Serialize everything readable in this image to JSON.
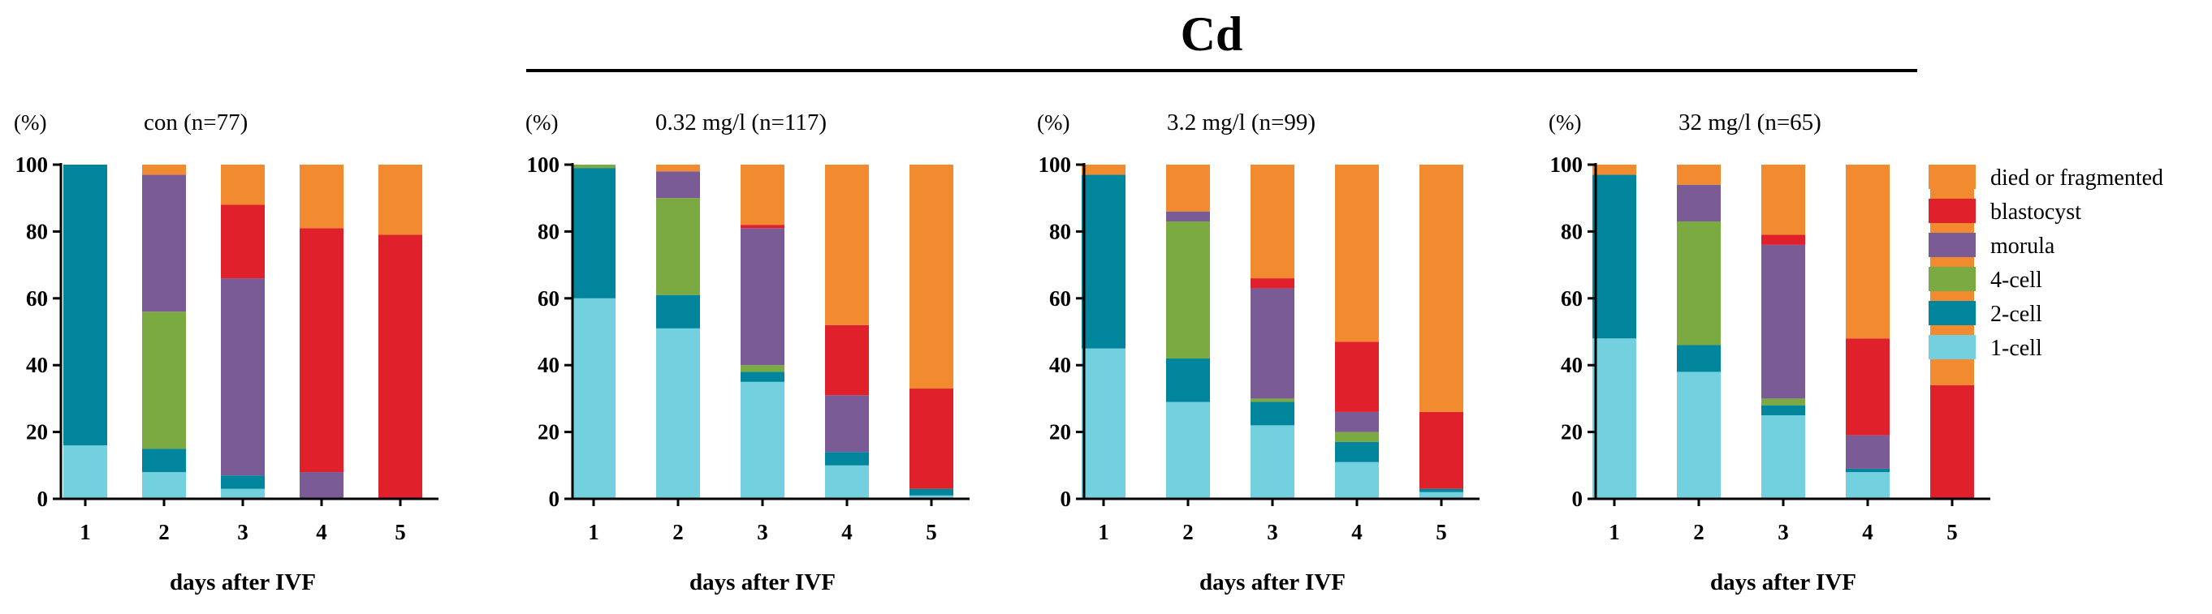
{
  "figure_title": "Cd",
  "colors": {
    "died or fragmented": "#F28A30",
    "blastocyst": "#E0202A",
    "morula": "#7B5B95",
    "4-cell": "#7BAA42",
    "2-cell": "#00859C",
    "1-cell": "#72D0DF",
    "axis": "#000000"
  },
  "legend": {
    "items": [
      "died or fragmented",
      "blastocyst",
      "morula",
      "4-cell",
      "2-cell",
      "1-cell"
    ]
  },
  "chart_data": [
    {
      "type": "bar",
      "stacked": true,
      "title": "con (n=77)",
      "ylabel": "(%)",
      "xlabel": "days after IVF",
      "categories": [
        "1",
        "2",
        "3",
        "4",
        "5"
      ],
      "ylim": [
        0,
        100
      ],
      "yticks": [
        "0",
        "20",
        "40",
        "60",
        "80",
        "100"
      ],
      "series": [
        {
          "name": "1-cell",
          "values": [
            16,
            8,
            3,
            0,
            0
          ]
        },
        {
          "name": "2-cell",
          "values": [
            84,
            7,
            4,
            0,
            0
          ]
        },
        {
          "name": "4-cell",
          "values": [
            0,
            41,
            0,
            0,
            0
          ]
        },
        {
          "name": "morula",
          "values": [
            0,
            41,
            59,
            8,
            0
          ]
        },
        {
          "name": "blastocyst",
          "values": [
            0,
            0,
            22,
            73,
            79
          ]
        },
        {
          "name": "died or fragmented",
          "values": [
            0,
            3,
            12,
            19,
            21
          ]
        }
      ]
    },
    {
      "type": "bar",
      "stacked": true,
      "title": "0.32 mg/l (n=117)",
      "ylabel": "(%)",
      "xlabel": "days after IVF",
      "categories": [
        "1",
        "2",
        "3",
        "4",
        "5"
      ],
      "ylim": [
        0,
        100
      ],
      "yticks": [
        "0",
        "20",
        "40",
        "60",
        "80",
        "100"
      ],
      "series": [
        {
          "name": "1-cell",
          "values": [
            60,
            51,
            35,
            10,
            1
          ]
        },
        {
          "name": "2-cell",
          "values": [
            39,
            10,
            3,
            4,
            2
          ]
        },
        {
          "name": "4-cell",
          "values": [
            1,
            29,
            2,
            0,
            0
          ]
        },
        {
          "name": "morula",
          "values": [
            0,
            8,
            41,
            17,
            0
          ]
        },
        {
          "name": "blastocyst",
          "values": [
            0,
            0,
            1,
            21,
            30
          ]
        },
        {
          "name": "died or fragmented",
          "values": [
            0,
            2,
            18,
            48,
            67
          ]
        }
      ]
    },
    {
      "type": "bar",
      "stacked": true,
      "title": "3.2 mg/l (n=99)",
      "ylabel": "(%)",
      "xlabel": "days after IVF",
      "categories": [
        "1",
        "2",
        "3",
        "4",
        "5"
      ],
      "ylim": [
        0,
        100
      ],
      "yticks": [
        "0",
        "20",
        "40",
        "60",
        "80",
        "100"
      ],
      "series": [
        {
          "name": "1-cell",
          "values": [
            45,
            29,
            22,
            11,
            2
          ]
        },
        {
          "name": "2-cell",
          "values": [
            52,
            13,
            7,
            6,
            1
          ]
        },
        {
          "name": "4-cell",
          "values": [
            0,
            41,
            1,
            3,
            0
          ]
        },
        {
          "name": "morula",
          "values": [
            0,
            3,
            33,
            6,
            0
          ]
        },
        {
          "name": "blastocyst",
          "values": [
            0,
            0,
            3,
            21,
            23
          ]
        },
        {
          "name": "died or fragmented",
          "values": [
            3,
            14,
            34,
            53,
            74
          ]
        }
      ]
    },
    {
      "type": "bar",
      "stacked": true,
      "title": "32 mg/l (n=65)",
      "ylabel": "(%)",
      "xlabel": "days after IVF",
      "categories": [
        "1",
        "2",
        "3",
        "4",
        "5"
      ],
      "ylim": [
        0,
        100
      ],
      "yticks": [
        "0",
        "20",
        "40",
        "60",
        "80",
        "100"
      ],
      "series": [
        {
          "name": "1-cell",
          "values": [
            48,
            38,
            25,
            8,
            0
          ]
        },
        {
          "name": "2-cell",
          "values": [
            49,
            8,
            3,
            1,
            0
          ]
        },
        {
          "name": "4-cell",
          "values": [
            0,
            37,
            2,
            0,
            0
          ]
        },
        {
          "name": "morula",
          "values": [
            0,
            11,
            46,
            10,
            0
          ]
        },
        {
          "name": "blastocyst",
          "values": [
            0,
            0,
            3,
            29,
            34
          ]
        },
        {
          "name": "died or fragmented",
          "values": [
            3,
            6,
            21,
            52,
            66
          ]
        }
      ]
    }
  ]
}
